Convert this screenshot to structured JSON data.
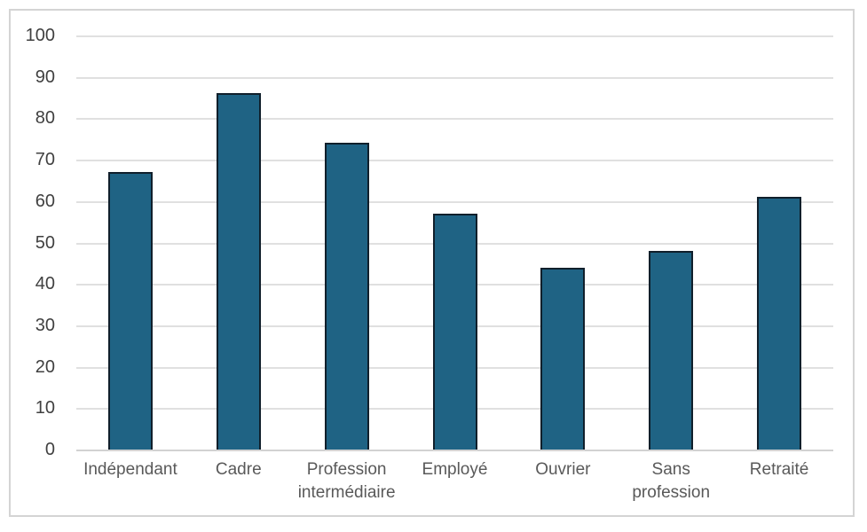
{
  "chart_data": {
    "type": "bar",
    "title": "",
    "xlabel": "",
    "ylabel": "",
    "categories": [
      "Indépendant",
      "Cadre",
      "Profession intermédiaire",
      "Employé",
      "Ouvrier",
      "Sans profession",
      "Retraité"
    ],
    "categories_display": [
      [
        "Indépendant"
      ],
      [
        "Cadre"
      ],
      [
        "Profession",
        "intermédiaire"
      ],
      [
        "Employé"
      ],
      [
        "Ouvrier"
      ],
      [
        "Sans",
        "profession"
      ],
      [
        "Retraité"
      ]
    ],
    "values": [
      67,
      86,
      74,
      57,
      44,
      48,
      61
    ],
    "ylim": [
      0,
      100
    ],
    "yticks": [
      0,
      10,
      20,
      30,
      40,
      50,
      60,
      70,
      80,
      90,
      100
    ],
    "grid": true,
    "legend": false,
    "colors": {
      "bar_fill": "#1f6384",
      "bar_border": "#101f2b",
      "gridline": "#e0e0e0",
      "axis_line": "#d2d2d2",
      "ytick_text": "#404040",
      "xtick_text": "#595959",
      "frame_border": "#d4d4d4",
      "background": "#ffffff"
    }
  }
}
